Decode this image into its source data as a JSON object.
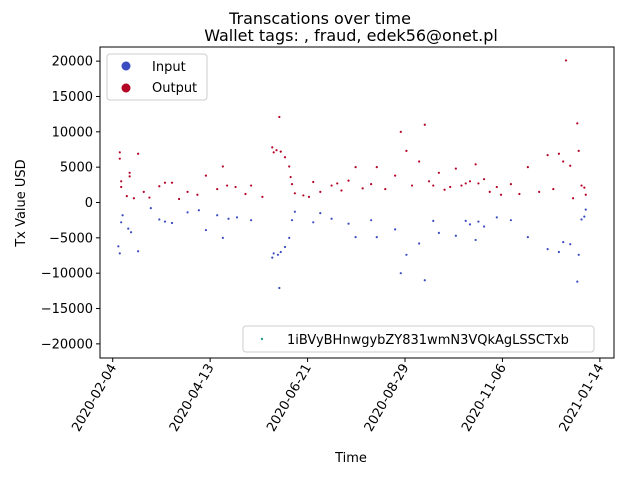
{
  "chart_data": {
    "type": "scatter",
    "title": "Transcations over time",
    "subtitle": "Wallet tags: , fraud, edek56@onet.pl",
    "xlabel": "Time",
    "ylabel": "Tx Value USD",
    "x_ticks": [
      "2020-02-04",
      "2020-04-13",
      "2020-06-21",
      "2020-08-29",
      "2020-11-06",
      "2021-01-14"
    ],
    "xlim": [
      "2020-01-26",
      "2021-01-24"
    ],
    "y_ticks": [
      -20000,
      -15000,
      -10000,
      -5000,
      0,
      5000,
      10000,
      15000,
      20000
    ],
    "ylim": [
      -22000,
      22000
    ],
    "grid": false,
    "legends": {
      "upper_left": [
        "Input",
        "Output"
      ],
      "lower_right": [
        "1iBVyBHnwgybZY831wmN3VQkAgLSSCTxb"
      ]
    },
    "colors": {
      "input": "#3b4cc0",
      "output": "#b40426",
      "address": "#2a9d8f"
    },
    "series": [
      {
        "name": "Output",
        "points": [
          [
            "2020-02-09",
            7100
          ],
          [
            "2020-02-09",
            6200
          ],
          [
            "2020-02-10",
            3000
          ],
          [
            "2020-02-10",
            2200
          ],
          [
            "2020-02-14",
            900
          ],
          [
            "2020-02-16",
            4200
          ],
          [
            "2020-02-16",
            3700
          ],
          [
            "2020-02-19",
            600
          ],
          [
            "2020-02-22",
            6900
          ],
          [
            "2020-02-26",
            1500
          ],
          [
            "2020-03-01",
            700
          ],
          [
            "2020-03-08",
            2300
          ],
          [
            "2020-03-12",
            2800
          ],
          [
            "2020-03-17",
            2800
          ],
          [
            "2020-03-22",
            500
          ],
          [
            "2020-03-28",
            1500
          ],
          [
            "2020-04-04",
            1100
          ],
          [
            "2020-04-10",
            3800
          ],
          [
            "2020-04-18",
            1900
          ],
          [
            "2020-04-22",
            5100
          ],
          [
            "2020-04-25",
            2400
          ],
          [
            "2020-05-01",
            2200
          ],
          [
            "2020-05-08",
            1200
          ],
          [
            "2020-05-12",
            2400
          ],
          [
            "2020-05-20",
            800
          ],
          [
            "2020-05-27",
            7800
          ],
          [
            "2020-05-28",
            7100
          ],
          [
            "2020-05-30",
            7400
          ],
          [
            "2020-06-01",
            12100
          ],
          [
            "2020-06-02",
            7200
          ],
          [
            "2020-06-05",
            6400
          ],
          [
            "2020-06-08",
            5100
          ],
          [
            "2020-06-09",
            3600
          ],
          [
            "2020-06-10",
            2600
          ],
          [
            "2020-06-12",
            1300
          ],
          [
            "2020-06-18",
            1000
          ],
          [
            "2020-06-22",
            800
          ],
          [
            "2020-06-25",
            2900
          ],
          [
            "2020-06-30",
            1500
          ],
          [
            "2020-07-08",
            2400
          ],
          [
            "2020-07-12",
            2700
          ],
          [
            "2020-07-15",
            1700
          ],
          [
            "2020-07-20",
            3100
          ],
          [
            "2020-07-25",
            5000
          ],
          [
            "2020-07-30",
            2000
          ],
          [
            "2020-08-05",
            2600
          ],
          [
            "2020-08-09",
            5000
          ],
          [
            "2020-08-15",
            1900
          ],
          [
            "2020-08-22",
            3800
          ],
          [
            "2020-08-26",
            10000
          ],
          [
            "2020-08-30",
            7300
          ],
          [
            "2020-09-03",
            2400
          ],
          [
            "2020-09-08",
            5800
          ],
          [
            "2020-09-12",
            11000
          ],
          [
            "2020-09-15",
            3000
          ],
          [
            "2020-09-18",
            2400
          ],
          [
            "2020-09-22",
            4200
          ],
          [
            "2020-09-26",
            1800
          ],
          [
            "2020-09-30",
            2200
          ],
          [
            "2020-10-04",
            4800
          ],
          [
            "2020-10-08",
            2400
          ],
          [
            "2020-10-11",
            2700
          ],
          [
            "2020-10-14",
            3000
          ],
          [
            "2020-10-18",
            5400
          ],
          [
            "2020-10-20",
            2700
          ],
          [
            "2020-10-24",
            3300
          ],
          [
            "2020-10-28",
            1500
          ],
          [
            "2020-11-02",
            2200
          ],
          [
            "2020-11-05",
            1100
          ],
          [
            "2020-11-12",
            2600
          ],
          [
            "2020-11-18",
            1200
          ],
          [
            "2020-11-24",
            5000
          ],
          [
            "2020-12-02",
            1500
          ],
          [
            "2020-12-08",
            6700
          ],
          [
            "2020-12-12",
            1900
          ],
          [
            "2020-12-16",
            6900
          ],
          [
            "2020-12-19",
            5800
          ],
          [
            "2020-12-21",
            20100
          ],
          [
            "2020-12-24",
            5200
          ],
          [
            "2020-12-29",
            11200
          ],
          [
            "2020-12-30",
            7300
          ],
          [
            "2021-01-01",
            2400
          ],
          [
            "2021-01-03",
            2100
          ],
          [
            "2021-01-04",
            1100
          ],
          [
            "2020-12-26",
            600
          ]
        ]
      },
      {
        "name": "Input",
        "points": [
          [
            "2020-02-08",
            -6200
          ],
          [
            "2020-02-09",
            -7200
          ],
          [
            "2020-02-10",
            -2800
          ],
          [
            "2020-02-11",
            -1800
          ],
          [
            "2020-02-15",
            -3700
          ],
          [
            "2020-02-17",
            -4200
          ],
          [
            "2020-02-22",
            -6900
          ],
          [
            "2020-03-02",
            -800
          ],
          [
            "2020-03-08",
            -2400
          ],
          [
            "2020-03-12",
            -2700
          ],
          [
            "2020-03-17",
            -2900
          ],
          [
            "2020-03-28",
            -1400
          ],
          [
            "2020-04-05",
            -1100
          ],
          [
            "2020-04-10",
            -3900
          ],
          [
            "2020-04-18",
            -1800
          ],
          [
            "2020-04-22",
            -5000
          ],
          [
            "2020-04-26",
            -2300
          ],
          [
            "2020-05-02",
            -2100
          ],
          [
            "2020-05-12",
            -2500
          ],
          [
            "2020-05-27",
            -7800
          ],
          [
            "2020-05-28",
            -7200
          ],
          [
            "2020-05-31",
            -7400
          ],
          [
            "2020-06-01",
            -12100
          ],
          [
            "2020-06-02",
            -7000
          ],
          [
            "2020-06-05",
            -6300
          ],
          [
            "2020-06-08",
            -5000
          ],
          [
            "2020-06-10",
            -2500
          ],
          [
            "2020-06-12",
            -1300
          ],
          [
            "2020-06-25",
            -2800
          ],
          [
            "2020-06-30",
            -1500
          ],
          [
            "2020-07-08",
            -2300
          ],
          [
            "2020-07-20",
            -3000
          ],
          [
            "2020-07-25",
            -4900
          ],
          [
            "2020-08-05",
            -2500
          ],
          [
            "2020-08-09",
            -4900
          ],
          [
            "2020-08-22",
            -3800
          ],
          [
            "2020-08-26",
            -10000
          ],
          [
            "2020-08-30",
            -7400
          ],
          [
            "2020-09-08",
            -5800
          ],
          [
            "2020-09-12",
            -11000
          ],
          [
            "2020-09-18",
            -2600
          ],
          [
            "2020-09-22",
            -4300
          ],
          [
            "2020-10-04",
            -4700
          ],
          [
            "2020-10-11",
            -2600
          ],
          [
            "2020-10-14",
            -3100
          ],
          [
            "2020-10-18",
            -5300
          ],
          [
            "2020-10-20",
            -2700
          ],
          [
            "2020-10-24",
            -3400
          ],
          [
            "2020-11-02",
            -2100
          ],
          [
            "2020-11-12",
            -2500
          ],
          [
            "2020-11-24",
            -4900
          ],
          [
            "2020-12-08",
            -6600
          ],
          [
            "2020-12-16",
            -7000
          ],
          [
            "2020-12-19",
            -5600
          ],
          [
            "2020-12-24",
            -5900
          ],
          [
            "2020-12-29",
            -11200
          ],
          [
            "2020-12-30",
            -7400
          ],
          [
            "2021-01-01",
            -2400
          ],
          [
            "2021-01-03",
            -2000
          ],
          [
            "2021-01-04",
            -1000
          ]
        ]
      }
    ]
  }
}
